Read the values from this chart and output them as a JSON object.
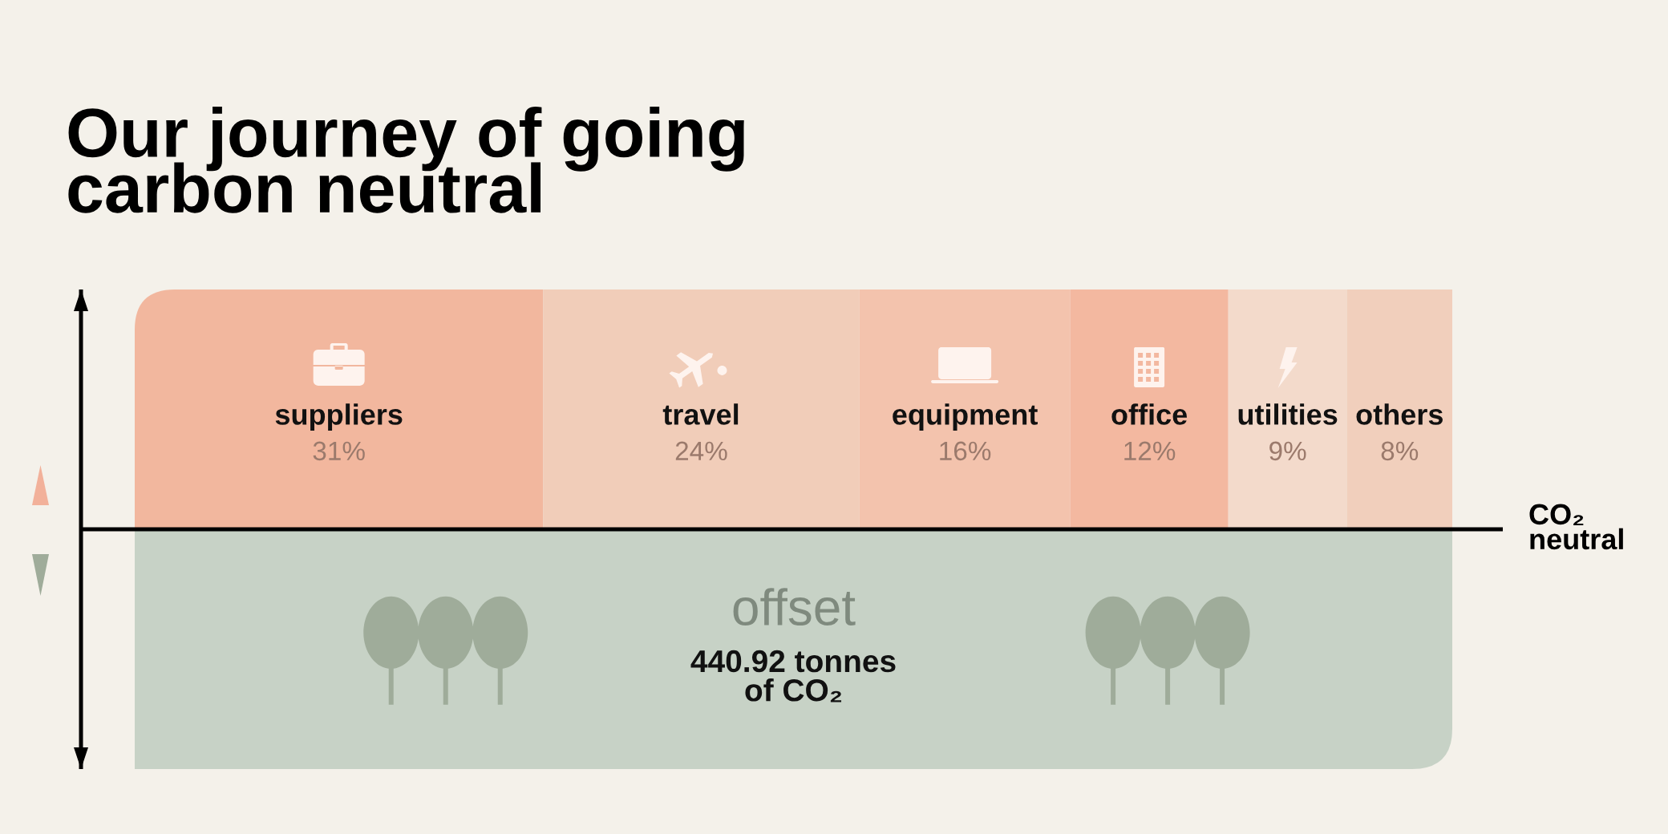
{
  "chart_data": {
    "type": "bar",
    "title": "Our journey of going\ncarbon neutral",
    "orientation": "horizontal",
    "stacked": true,
    "categories": [
      null,
      null
    ],
    "series": [
      {
        "name": "suppliers",
        "color": "#f2b79e",
        "values": [
          31,
          null
        ],
        "value_labels": [
          "31%",
          null
        ]
      },
      {
        "name": "travel",
        "color": "#f1cdb9",
        "values": [
          24,
          null
        ],
        "value_labels": [
          "24%",
          null
        ]
      },
      {
        "name": "equipment",
        "color": "#f3c3ad",
        "values": [
          16,
          null
        ],
        "value_labels": [
          "16%",
          null
        ]
      },
      {
        "name": "office",
        "color": "#f3b8a0",
        "values": [
          12,
          null
        ],
        "value_labels": [
          "12%",
          null
        ]
      },
      {
        "name": "utilities",
        "color": "#f3dacb",
        "values": [
          9,
          null
        ],
        "value_labels": [
          "9%",
          null
        ]
      },
      {
        "name": "others",
        "color": "#f1cfbc",
        "values": [
          8,
          null
        ],
        "value_labels": [
          "8%",
          null
        ]
      },
      {
        "name": "offset",
        "color": "#c7d2c6",
        "values": [
          null,
          100
        ]
      }
    ],
    "xlim": [
      0,
      100
    ],
    "annotations": [
      "CO₂\nneutral",
      "440.92 tonnes\nof CO₂"
    ]
  }
}
